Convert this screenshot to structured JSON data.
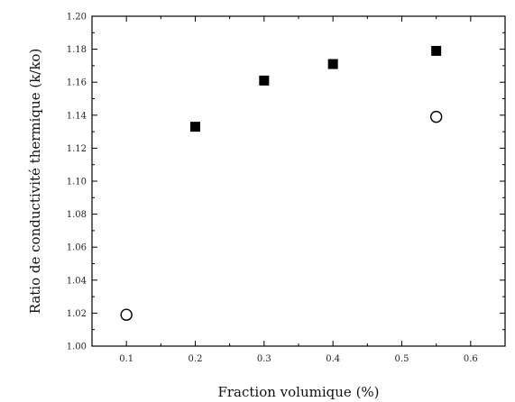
{
  "chart_data": {
    "type": "scatter",
    "xlabel": "Fraction volumique (%)",
    "ylabel": "Ratio de conductivité thermique (k/ko)",
    "xlim": [
      0.05,
      0.65
    ],
    "ylim": [
      1.0,
      1.2
    ],
    "x_ticks": [
      "0.1",
      "0.2",
      "0.3",
      "0.4",
      "0.5",
      "0.6"
    ],
    "x_tick_values": [
      0.1,
      0.2,
      0.3,
      0.4,
      0.5,
      0.6
    ],
    "y_ticks": [
      "1.00",
      "1.02",
      "1.04",
      "1.06",
      "1.08",
      "1.10",
      "1.12",
      "1.14",
      "1.16",
      "1.18",
      "1.20"
    ],
    "y_tick_values": [
      1.0,
      1.02,
      1.04,
      1.06,
      1.08,
      1.1,
      1.12,
      1.14,
      1.16,
      1.18,
      1.2
    ],
    "grid": false,
    "series": [
      {
        "marker": "filled-square",
        "color": "#000000",
        "x": [
          0.2,
          0.3,
          0.4,
          0.55
        ],
        "y": [
          1.133,
          1.161,
          1.171,
          1.179
        ]
      },
      {
        "marker": "open-circle",
        "color": "#000000",
        "x": [
          0.1,
          0.55
        ],
        "y": [
          1.019,
          1.139
        ]
      }
    ]
  }
}
